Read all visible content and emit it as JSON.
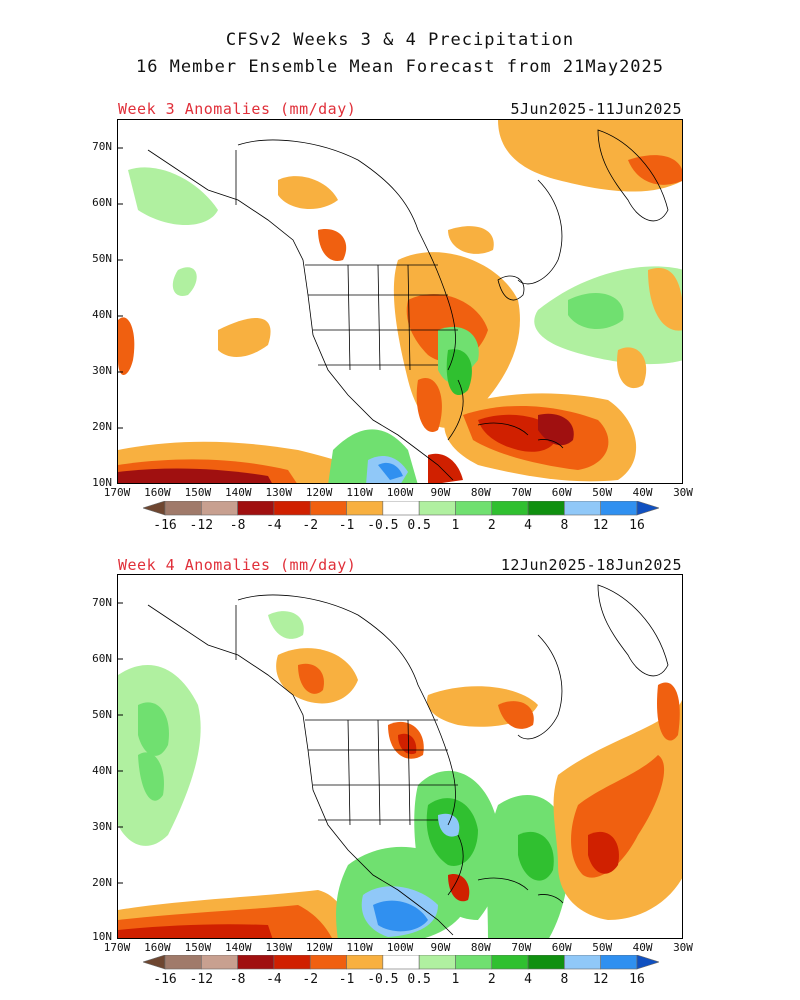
{
  "title_line1": "CFSv2 Weeks 3 & 4 Precipitation",
  "title_line2": "16 Member Ensemble Mean Forecast from 21May2025",
  "panels": [
    {
      "label": "Week 3 Anomalies (mm/day)",
      "dates": "5Jun2025-11Jun2025"
    },
    {
      "label": "Week 4 Anomalies (mm/day)",
      "dates": "12Jun2025-18Jun2025"
    }
  ],
  "lat_labels": [
    "70N",
    "60N",
    "50N",
    "40N",
    "30N",
    "20N",
    "10N"
  ],
  "lon_labels": [
    "170W",
    "160W",
    "150W",
    "140W",
    "130W",
    "120W",
    "110W",
    "100W",
    "90W",
    "80W",
    "70W",
    "60W",
    "50W",
    "40W",
    "30W"
  ],
  "colorbar": {
    "labels": [
      "-16",
      "-12",
      "-8",
      "-4",
      "-2",
      "-1",
      "-0.5",
      "0.5",
      "1",
      "2",
      "4",
      "8",
      "12",
      "16"
    ],
    "colors": [
      "#6e4630",
      "#a07a6a",
      "#c8a090",
      "#a01010",
      "#d02000",
      "#f06010",
      "#f8b040",
      "#ffffff",
      "#b0f0a0",
      "#70e070",
      "#30c030",
      "#109010",
      "#90c8f8",
      "#3090f0",
      "#1050c0"
    ]
  }
}
